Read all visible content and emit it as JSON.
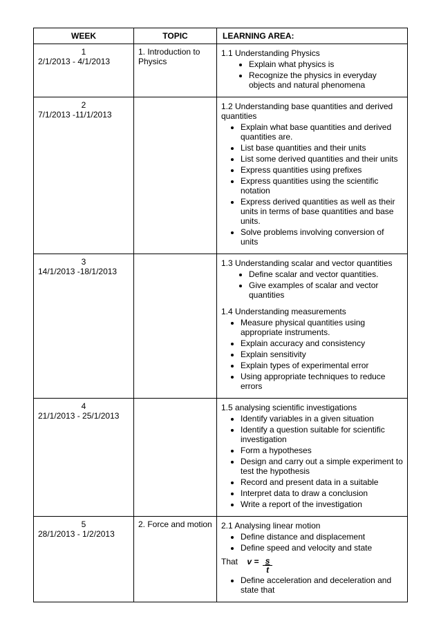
{
  "table": {
    "headers": {
      "week": "WEEK",
      "topic": "TOPIC",
      "learning_area": "LEARNING AREA:"
    },
    "col_widths": [
      "145px",
      "120px",
      "auto"
    ],
    "rows": [
      {
        "week_num": "1",
        "week_range": "2/1/2013 - 4/1/2013",
        "topic": "1. Introduction to Physics",
        "sections": [
          {
            "title": "1.1 Understanding Physics",
            "bullets_indent": "sub",
            "bullets": [
              "Explain what physics is",
              "Recognize the physics in everyday objects and natural phenomena"
            ]
          }
        ]
      },
      {
        "week_num": "2",
        "week_range": "7/1/2013 -11/1/2013",
        "topic": "",
        "sections": [
          {
            "title": "1.2 Understanding base quantities and derived quantities",
            "title_indent": true,
            "bullets": [
              "Explain what base quantities and derived quantities are.",
              "List base quantities and their units",
              "List some derived quantities and their units",
              "Express quantities using prefixes",
              "Express quantities using the scientific notation",
              "Express derived quantities as well as their units in terms of base quantities and base units.",
              "Solve problems involving conversion of units"
            ]
          }
        ]
      },
      {
        "week_num": "3",
        "week_range": "14/1/2013 -18/1/2013",
        "topic": "",
        "sections": [
          {
            "title": "1.3 Understanding scalar and vector quantities",
            "bullets_indent": "sub",
            "bullets": [
              "Define scalar and vector quantities.",
              "Give examples of scalar and vector quantities"
            ]
          },
          {
            "title": "1.4 Understanding measurements",
            "bullets": [
              "Measure physical quantities using appropriate instruments.",
              "Explain accuracy and consistency",
              "Explain sensitivity",
              "Explain types of experimental error",
              "Using appropriate techniques to reduce errors"
            ]
          }
        ]
      },
      {
        "week_num": "4",
        "week_range": "21/1/2013 - 25/1/2013",
        "topic": "",
        "sections": [
          {
            "title": "1.5 analysing scientific investigations",
            "bullets": [
              "Identify variables in a given situation",
              "Identify a question suitable for scientific investigation",
              "Form a hypotheses",
              "Design and carry out a simple experiment to test the hypothesis",
              "Record and present data in a suitable",
              "Interpret data to draw a conclusion",
              "Write a report of the investigation"
            ]
          }
        ]
      },
      {
        "week_num": "5",
        "week_range": "28/1/2013 - 1/2/2013",
        "topic": "2.  Force and motion",
        "sections": [
          {
            "title": "2.1 Analysing linear motion",
            "bullets": [
              "Define distance and displacement",
              "Define speed and velocity and state"
            ],
            "formula": {
              "that": "That",
              "vlabel": "v =",
              "num": "s",
              "den": "t"
            },
            "bullets_after": [
              "Define acceleration and deceleration and state that"
            ]
          }
        ]
      }
    ]
  }
}
